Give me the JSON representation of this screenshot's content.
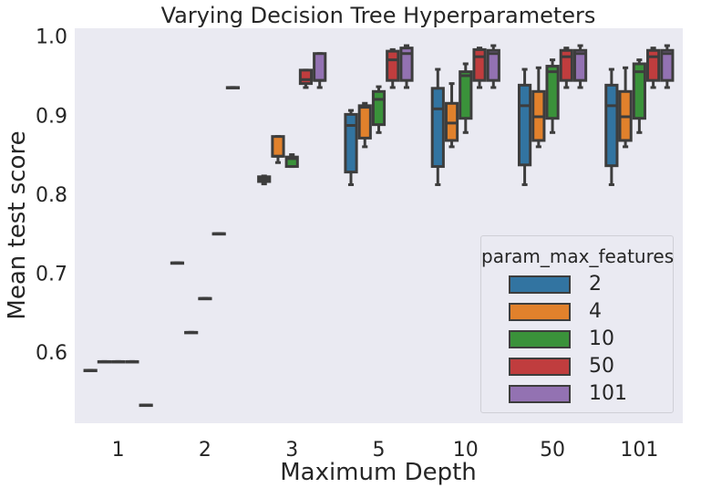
{
  "chart_data": {
    "type": "box",
    "title": "Varying Decision Tree Hyperparameters",
    "xlabel": "Maximum Depth",
    "ylabel": "Mean test score",
    "categories": [
      "1",
      "2",
      "3",
      "5",
      "10",
      "50",
      "101"
    ],
    "ylim": [
      0.51,
      1.01
    ],
    "yticks": [
      0.6,
      0.7,
      0.8,
      0.9,
      1.0
    ],
    "ytick_labels": [
      "0.6",
      "0.7",
      "0.8",
      "0.9",
      "1.0"
    ],
    "grid": false,
    "legend": {
      "title": "param_max_features",
      "placement": "bottom-right"
    },
    "series": [
      {
        "name": "2",
        "color": "#3274a1",
        "boxes": [
          {
            "min": 0.577,
            "q1": 0.577,
            "median": 0.577,
            "q3": 0.577,
            "max": 0.577
          },
          {
            "min": 0.713,
            "q1": 0.713,
            "median": 0.713,
            "q3": 0.713,
            "max": 0.713
          },
          {
            "min": 0.813,
            "q1": 0.816,
            "median": 0.819,
            "q3": 0.822,
            "max": 0.823
          },
          {
            "min": 0.812,
            "q1": 0.828,
            "median": 0.887,
            "q3": 0.901,
            "max": 0.906
          },
          {
            "min": 0.812,
            "q1": 0.835,
            "median": 0.908,
            "q3": 0.934,
            "max": 0.958
          },
          {
            "min": 0.812,
            "q1": 0.837,
            "median": 0.912,
            "q3": 0.938,
            "max": 0.958
          },
          {
            "min": 0.812,
            "q1": 0.836,
            "median": 0.912,
            "q3": 0.938,
            "max": 0.958
          }
        ]
      },
      {
        "name": "4",
        "color": "#e1812c",
        "boxes": [
          {
            "min": 0.588,
            "q1": 0.588,
            "median": 0.588,
            "q3": 0.588,
            "max": 0.588
          },
          {
            "min": 0.625,
            "q1": 0.625,
            "median": 0.625,
            "q3": 0.625,
            "max": 0.625
          },
          {
            "min": 0.84,
            "q1": 0.848,
            "median": 0.848,
            "q3": 0.873,
            "max": 0.873
          },
          {
            "min": 0.86,
            "q1": 0.871,
            "median": 0.91,
            "q3": 0.912,
            "max": 0.915
          },
          {
            "min": 0.86,
            "q1": 0.868,
            "median": 0.89,
            "q3": 0.915,
            "max": 0.94
          },
          {
            "min": 0.86,
            "q1": 0.868,
            "median": 0.898,
            "q3": 0.93,
            "max": 0.96
          },
          {
            "min": 0.86,
            "q1": 0.868,
            "median": 0.898,
            "q3": 0.93,
            "max": 0.96
          }
        ]
      },
      {
        "name": "10",
        "color": "#3a923a",
        "boxes": [
          {
            "min": 0.588,
            "q1": 0.588,
            "median": 0.588,
            "q3": 0.588,
            "max": 0.588
          },
          {
            "min": 0.668,
            "q1": 0.668,
            "median": 0.668,
            "q3": 0.668,
            "max": 0.668
          },
          {
            "min": 0.835,
            "q1": 0.835,
            "median": 0.845,
            "q3": 0.847,
            "max": 0.85
          },
          {
            "min": 0.878,
            "q1": 0.888,
            "median": 0.92,
            "q3": 0.93,
            "max": 0.936
          },
          {
            "min": 0.878,
            "q1": 0.896,
            "median": 0.95,
            "q3": 0.955,
            "max": 0.965
          },
          {
            "min": 0.878,
            "q1": 0.896,
            "median": 0.955,
            "q3": 0.962,
            "max": 0.97
          },
          {
            "min": 0.878,
            "q1": 0.896,
            "median": 0.955,
            "q3": 0.965,
            "max": 0.97
          }
        ]
      },
      {
        "name": "50",
        "color": "#c03d3e",
        "boxes": [
          {
            "min": 0.588,
            "q1": 0.588,
            "median": 0.588,
            "q3": 0.588,
            "max": 0.588
          },
          {
            "min": 0.75,
            "q1": 0.75,
            "median": 0.75,
            "q3": 0.75,
            "max": 0.75
          },
          {
            "min": 0.935,
            "q1": 0.94,
            "median": 0.945,
            "q3": 0.957,
            "max": 0.957
          },
          {
            "min": 0.935,
            "q1": 0.944,
            "median": 0.97,
            "q3": 0.981,
            "max": 0.983
          },
          {
            "min": 0.935,
            "q1": 0.944,
            "median": 0.974,
            "q3": 0.983,
            "max": 0.985
          },
          {
            "min": 0.935,
            "q1": 0.944,
            "median": 0.974,
            "q3": 0.982,
            "max": 0.985
          },
          {
            "min": 0.935,
            "q1": 0.944,
            "median": 0.974,
            "q3": 0.982,
            "max": 0.985
          }
        ]
      },
      {
        "name": "101",
        "color": "#9372b2",
        "boxes": [
          {
            "min": 0.533,
            "q1": 0.533,
            "median": 0.533,
            "q3": 0.533,
            "max": 0.533
          },
          {
            "min": 0.935,
            "q1": 0.935,
            "median": 0.935,
            "q3": 0.935,
            "max": 0.935
          },
          {
            "min": 0.935,
            "q1": 0.944,
            "median": 0.944,
            "q3": 0.978,
            "max": 0.978
          },
          {
            "min": 0.935,
            "q1": 0.944,
            "median": 0.978,
            "q3": 0.985,
            "max": 0.988
          },
          {
            "min": 0.935,
            "q1": 0.944,
            "median": 0.978,
            "q3": 0.982,
            "max": 0.988
          },
          {
            "min": 0.935,
            "q1": 0.944,
            "median": 0.978,
            "q3": 0.982,
            "max": 0.988
          },
          {
            "min": 0.935,
            "q1": 0.944,
            "median": 0.978,
            "q3": 0.982,
            "max": 0.988
          }
        ]
      }
    ]
  }
}
